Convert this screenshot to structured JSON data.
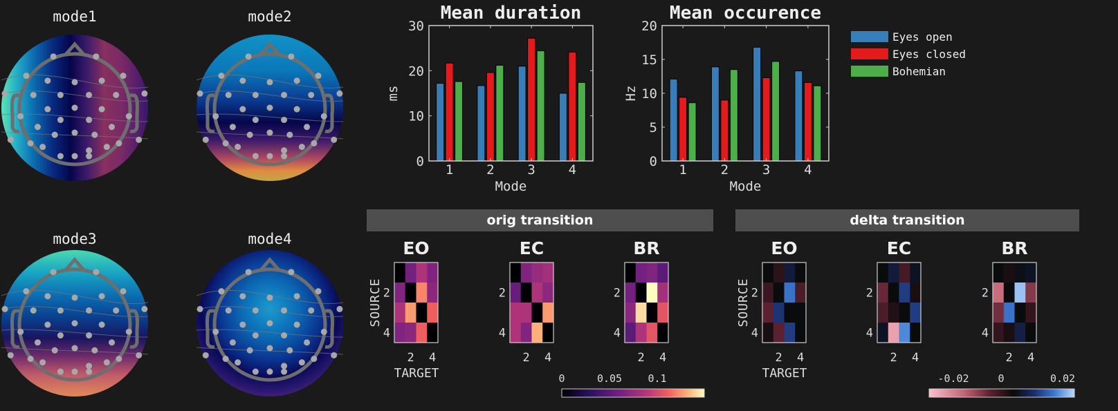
{
  "topomaps": [
    {
      "title": "mode1"
    },
    {
      "title": "mode2"
    },
    {
      "title": "mode3"
    },
    {
      "title": "mode4"
    }
  ],
  "legend": {
    "position": "right",
    "entries": [
      {
        "label": "Eyes open",
        "color": "#377eb8"
      },
      {
        "label": "Eyes closed",
        "color": "#e41a1c"
      },
      {
        "label": "Bohemian",
        "color": "#4daf4a"
      }
    ]
  },
  "panels": {
    "orig_header": "orig transition",
    "delta_header": "delta transition",
    "orig_colorbar_ticks": [
      "0",
      "0.05",
      "0.1"
    ],
    "delta_colorbar_ticks": [
      "-0.02",
      "0",
      "0.02"
    ]
  },
  "chart_data": [
    {
      "type": "bar",
      "title": "Mean duration",
      "xlabel": "Mode",
      "ylabel": "ms",
      "categories": [
        "1",
        "2",
        "3",
        "4"
      ],
      "ylim": [
        0,
        30
      ],
      "yticks": [
        "0",
        "10",
        "20",
        "30"
      ],
      "series": [
        {
          "name": "Eyes open",
          "values": [
            17.2,
            16.7,
            21.0,
            15.0
          ]
        },
        {
          "name": "Eyes closed",
          "values": [
            21.7,
            19.6,
            27.2,
            24.1
          ]
        },
        {
          "name": "Bohemian",
          "values": [
            17.6,
            21.2,
            24.4,
            17.4
          ]
        }
      ]
    },
    {
      "type": "bar",
      "title": "Mean occurence",
      "xlabel": "Mode",
      "ylabel": "Hz",
      "categories": [
        "1",
        "2",
        "3",
        "4"
      ],
      "ylim": [
        0,
        20
      ],
      "yticks": [
        "0",
        "5",
        "10",
        "15",
        "20"
      ],
      "series": [
        {
          "name": "Eyes open",
          "values": [
            12.1,
            13.9,
            16.8,
            13.3
          ]
        },
        {
          "name": "Eyes closed",
          "values": [
            9.4,
            9.0,
            12.3,
            11.6
          ]
        },
        {
          "name": "Bohemian",
          "values": [
            8.6,
            13.5,
            14.7,
            11.1
          ]
        }
      ]
    },
    {
      "type": "heatmap",
      "group": "orig",
      "title": "EO",
      "xlabel": "TARGET",
      "ylabel": "SOURCE",
      "xticks": [
        "2",
        "4"
      ],
      "yticks": [
        "2",
        "4"
      ],
      "clim": [
        0,
        0.148
      ],
      "colormap": "magma",
      "values": [
        [
          0,
          0.06,
          0.085,
          0.065
        ],
        [
          0.065,
          0,
          0.12,
          0.07
        ],
        [
          0.085,
          0.125,
          0,
          0.11
        ],
        [
          0.065,
          0.07,
          0.11,
          0
        ]
      ]
    },
    {
      "type": "heatmap",
      "group": "orig",
      "title": "EC",
      "xlabel": "",
      "ylabel": "",
      "xticks": [
        "2",
        "4"
      ],
      "yticks": [
        "2",
        "4"
      ],
      "clim": [
        0,
        0.148
      ],
      "colormap": "magma",
      "values": [
        [
          0,
          0.065,
          0.075,
          0.08
        ],
        [
          0.055,
          0,
          0.085,
          0.07
        ],
        [
          0.085,
          0.085,
          0,
          0.125
        ],
        [
          0.085,
          0.065,
          0.13,
          0
        ]
      ]
    },
    {
      "type": "heatmap",
      "group": "orig",
      "title": "BR",
      "xlabel": "",
      "ylabel": "",
      "xticks": [
        "2",
        "4"
      ],
      "yticks": [
        "2",
        "4"
      ],
      "clim": [
        0,
        0.148
      ],
      "colormap": "magma",
      "values": [
        [
          0,
          0.06,
          0.065,
          0.05
        ],
        [
          0.06,
          0,
          0.148,
          0.08
        ],
        [
          0.07,
          0.14,
          0,
          0.105
        ],
        [
          0.05,
          0.085,
          0.105,
          0
        ]
      ]
    },
    {
      "type": "heatmap",
      "group": "delta",
      "title": "EO",
      "xlabel": "TARGET",
      "ylabel": "SOURCE",
      "xticks": [
        "2",
        "4"
      ],
      "yticks": [
        "2",
        "4"
      ],
      "clim": [
        -0.035,
        0.025
      ],
      "colormap": "diverging",
      "values": [
        [
          0,
          -0.004,
          0.004,
          0
        ],
        [
          -0.006,
          0,
          0.016,
          -0.008
        ],
        [
          -0.01,
          0.009,
          0,
          0
        ],
        [
          -0.002,
          -0.01,
          0.01,
          0
        ]
      ]
    },
    {
      "type": "heatmap",
      "group": "delta",
      "title": "EC",
      "xlabel": "",
      "ylabel": "",
      "xticks": [
        "2",
        "4"
      ],
      "yticks": [
        "2",
        "4"
      ],
      "clim": [
        -0.035,
        0.025
      ],
      "colormap": "diverging",
      "values": [
        [
          0,
          0.004,
          -0.007,
          0.002
        ],
        [
          -0.011,
          0,
          0.01,
          -0.002
        ],
        [
          -0.008,
          -0.003,
          0,
          0.01
        ],
        [
          0.002,
          -0.03,
          0.018,
          0
        ]
      ]
    },
    {
      "type": "heatmap",
      "group": "delta",
      "title": "BR",
      "xlabel": "",
      "ylabel": "",
      "xticks": [
        "2",
        "4"
      ],
      "yticks": [
        "2",
        "4"
      ],
      "clim": [
        -0.035,
        0.025
      ],
      "colormap": "diverging",
      "values": [
        [
          0,
          -0.002,
          0.001,
          0.002
        ],
        [
          -0.022,
          0,
          0.023,
          -0.014
        ],
        [
          -0.012,
          0.016,
          0,
          -0.005
        ],
        [
          -0.005,
          -0.002,
          0.005,
          0
        ]
      ]
    }
  ]
}
